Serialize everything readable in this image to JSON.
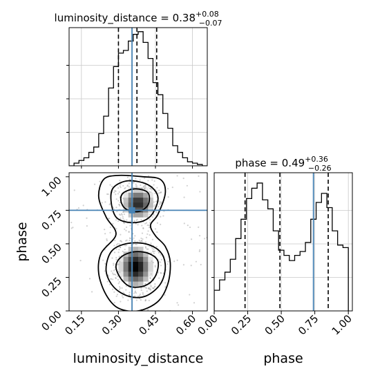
{
  "chart_data": [
    {
      "type": "histogram",
      "panel": "luminosity_distance marginal",
      "title": {
        "param": "luminosity_distance",
        "median": "0.38",
        "plus": "+0.08",
        "minus": "−0.07"
      },
      "bin_edges": [
        0.1,
        0.12,
        0.14,
        0.16,
        0.18,
        0.2,
        0.22,
        0.24,
        0.26,
        0.28,
        0.3,
        0.32,
        0.34,
        0.36,
        0.38,
        0.4,
        0.42,
        0.44,
        0.46,
        0.48,
        0.5,
        0.52,
        0.54,
        0.56,
        0.58,
        0.6,
        0.62,
        0.64,
        0.66
      ],
      "values": [
        0.0,
        0.02,
        0.04,
        0.06,
        0.1,
        0.14,
        0.24,
        0.37,
        0.58,
        0.74,
        0.84,
        0.86,
        0.93,
        0.98,
        1.0,
        0.92,
        0.8,
        0.62,
        0.53,
        0.39,
        0.28,
        0.15,
        0.1,
        0.06,
        0.03,
        0.02,
        0.01,
        0.0
      ],
      "quantiles": [
        0.3,
        0.375,
        0.455
      ],
      "truth": 0.355,
      "xlim": [
        0.1,
        0.66
      ],
      "ylim": [
        0,
        1.03
      ],
      "grid": true
    },
    {
      "type": "heatmap",
      "panel": "2D density",
      "xlabel": "luminosity_distance",
      "ylabel": "phase",
      "xlim": [
        0.1,
        0.66
      ],
      "ylim": [
        0.0,
        1.03
      ],
      "xticks": [
        "0.15",
        "0.30",
        "0.45",
        "0.60"
      ],
      "xtick_values": [
        0.15,
        0.3,
        0.45,
        0.6
      ],
      "yticks": [
        "0.00",
        "0.25",
        "0.50",
        "0.75",
        "1.00"
      ],
      "ytick_values": [
        0.0,
        0.25,
        0.5,
        0.75,
        1.0
      ],
      "truth": {
        "x": 0.355,
        "y": 0.75
      },
      "modes": [
        {
          "x": 0.38,
          "y": 0.8,
          "sx": 0.045,
          "sy": 0.085,
          "w": 0.9
        },
        {
          "x": 0.37,
          "y": 0.33,
          "sx": 0.045,
          "sy": 0.11,
          "w": 1.0
        }
      ],
      "contours": [
        {
          "level": "outer",
          "points": [
            [
              0.24,
              0.98
            ],
            [
              0.3,
              1.01
            ],
            [
              0.4,
              1.0
            ],
            [
              0.47,
              0.98
            ],
            [
              0.49,
              0.88
            ],
            [
              0.46,
              0.72
            ],
            [
              0.43,
              0.64
            ],
            [
              0.45,
              0.56
            ],
            [
              0.49,
              0.48
            ],
            [
              0.51,
              0.36
            ],
            [
              0.5,
              0.2
            ],
            [
              0.46,
              0.07
            ],
            [
              0.38,
              0.0
            ],
            [
              0.3,
              0.02
            ],
            [
              0.25,
              0.12
            ],
            [
              0.22,
              0.28
            ],
            [
              0.23,
              0.43
            ],
            [
              0.29,
              0.57
            ],
            [
              0.25,
              0.7
            ],
            [
              0.22,
              0.85
            ]
          ]
        },
        {
          "level": "middle",
          "points": [
            [
              0.28,
              0.92
            ],
            [
              0.34,
              0.97
            ],
            [
              0.42,
              0.94
            ],
            [
              0.46,
              0.85
            ],
            [
              0.44,
              0.73
            ],
            [
              0.4,
              0.67
            ],
            [
              0.34,
              0.66
            ],
            [
              0.29,
              0.7
            ],
            [
              0.27,
              0.82
            ]
          ]
        },
        {
          "level": "middle2",
          "points": [
            [
              0.27,
              0.44
            ],
            [
              0.33,
              0.5
            ],
            [
              0.41,
              0.5
            ],
            [
              0.47,
              0.44
            ],
            [
              0.49,
              0.33
            ],
            [
              0.47,
              0.2
            ],
            [
              0.41,
              0.11
            ],
            [
              0.34,
              0.11
            ],
            [
              0.28,
              0.18
            ],
            [
              0.25,
              0.3
            ]
          ]
        },
        {
          "level": "inner",
          "points": [
            [
              0.32,
              0.88
            ],
            [
              0.37,
              0.91
            ],
            [
              0.42,
              0.88
            ],
            [
              0.42,
              0.79
            ],
            [
              0.38,
              0.74
            ],
            [
              0.33,
              0.76
            ],
            [
              0.31,
              0.82
            ]
          ]
        },
        {
          "level": "inner2",
          "points": [
            [
              0.31,
              0.4
            ],
            [
              0.36,
              0.44
            ],
            [
              0.42,
              0.43
            ],
            [
              0.46,
              0.37
            ],
            [
              0.45,
              0.26
            ],
            [
              0.41,
              0.19
            ],
            [
              0.35,
              0.18
            ],
            [
              0.31,
              0.24
            ],
            [
              0.29,
              0.33
            ]
          ]
        }
      ]
    },
    {
      "type": "histogram",
      "panel": "phase marginal",
      "title": {
        "param": "phase",
        "median": "0.49",
        "plus": "+0.36",
        "minus": "−0.26"
      },
      "xlabel": "phase",
      "bin_edges": [
        0.0,
        0.04,
        0.08,
        0.12,
        0.16,
        0.2,
        0.24,
        0.28,
        0.32,
        0.36,
        0.4,
        0.44,
        0.48,
        0.52,
        0.56,
        0.6,
        0.64,
        0.68,
        0.72,
        0.76,
        0.8,
        0.84,
        0.88,
        0.92,
        0.96,
        1.0
      ],
      "values": [
        0.16,
        0.24,
        0.3,
        0.4,
        0.56,
        0.71,
        0.87,
        0.95,
        0.99,
        0.86,
        0.79,
        0.62,
        0.47,
        0.43,
        0.39,
        0.43,
        0.46,
        0.53,
        0.71,
        0.84,
        0.91,
        0.8,
        0.62,
        0.51,
        0.49
      ],
      "quantiles": [
        0.23,
        0.49,
        0.85
      ],
      "truth": 0.74,
      "xlim": [
        0.0,
        1.03
      ],
      "ylim": [
        0,
        1.07
      ],
      "xticks": [
        "0.00",
        "0.25",
        "0.50",
        "0.75",
        "1.00"
      ],
      "xtick_values": [
        0.0,
        0.25,
        0.5,
        0.75,
        1.0
      ],
      "grid": true
    }
  ],
  "colors": {
    "truth": "#4682b4",
    "line": "#000000",
    "grid": "#c8c8c8"
  }
}
